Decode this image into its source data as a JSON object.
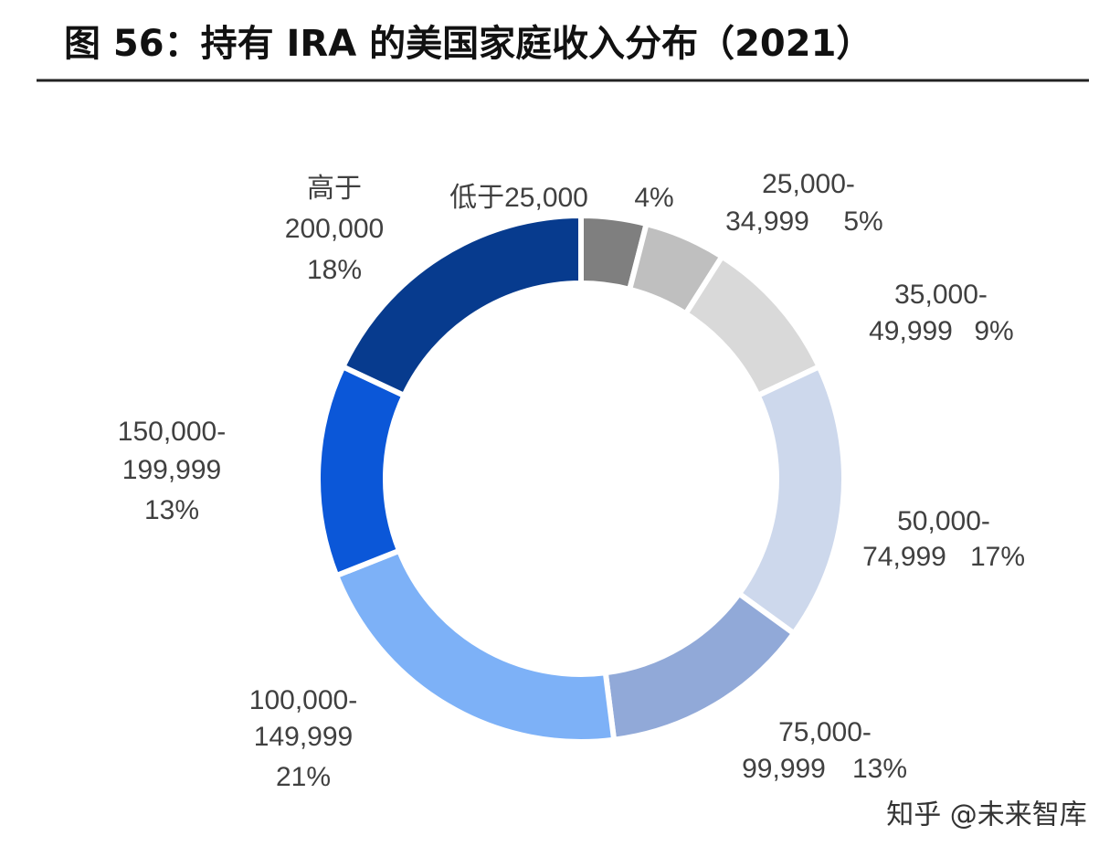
{
  "chart_data": {
    "type": "pie",
    "title": "图 56：持有 IRA 的美国家庭收入分布（2021）",
    "categories": [
      "低于25,000",
      "25,000-34,999",
      "35,000-49,999",
      "50,000-74,999",
      "75,000-99,999",
      "100,000-149,999",
      "150,000-199,999",
      "高于200,000"
    ],
    "values": [
      4,
      5,
      9,
      17,
      13,
      21,
      13,
      18
    ],
    "value_labels": [
      "4%",
      "5%",
      "9%",
      "17%",
      "13%",
      "21%",
      "13%",
      "18%"
    ],
    "colors": [
      "#7f7f7f",
      "#bfbfbf",
      "#d9d9d9",
      "#cdd8ec",
      "#91a9d8",
      "#7db1f7",
      "#0b57d8",
      "#073b8e"
    ],
    "watermark": "知乎 @未来智库"
  }
}
